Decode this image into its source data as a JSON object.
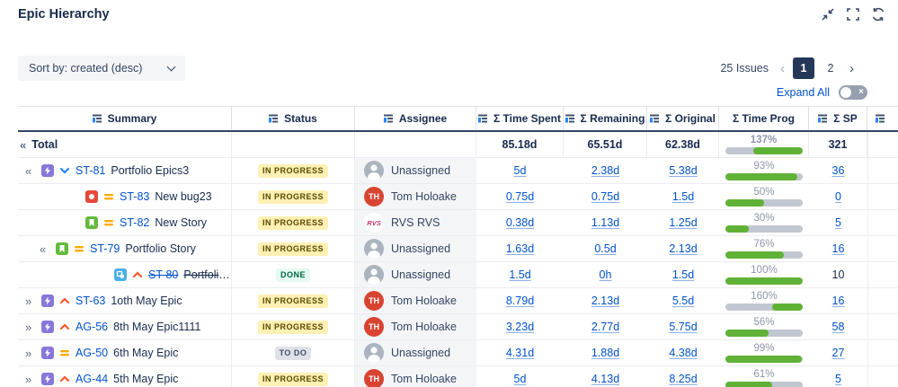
{
  "header": {
    "title": "Epic Hierarchy"
  },
  "window_icons": [
    {
      "name": "collapse-icon"
    },
    {
      "name": "fullscreen-icon"
    },
    {
      "name": "refresh-icon"
    }
  ],
  "toolbar": {
    "sort_label": "Sort by: created (desc)",
    "issues_count": "25 Issues",
    "prev": "‹",
    "next": "›",
    "pages": [
      {
        "label": "1",
        "active": true
      },
      {
        "label": "2",
        "active": false
      }
    ],
    "expand_all_label": "Expand All",
    "toggle_state": "off"
  },
  "colors": {
    "accent": "#0052CC",
    "progress_green": "#5FB236",
    "progress_track": "#C1C7D0",
    "active_page": "#253858"
  },
  "table": {
    "columns": [
      {
        "label": "Summary",
        "icon": true
      },
      {
        "label": "Status",
        "icon": true
      },
      {
        "label": "Assignee",
        "icon": true
      },
      {
        "label": "Σ Time Spent",
        "icon": true
      },
      {
        "label": "Σ Remaining",
        "icon": true
      },
      {
        "label": "Σ Original",
        "icon": true
      },
      {
        "label": "Σ Time Prog",
        "icon": false
      },
      {
        "label": "Σ SP",
        "icon": true
      },
      {
        "label": "",
        "icon": true
      }
    ],
    "total": {
      "chevron": "«",
      "label": "Total",
      "time_spent": "85.18d",
      "remaining": "65.51d",
      "original": "62.38d",
      "progress": 137,
      "sp": "321"
    },
    "rows": [
      {
        "chevron": "«",
        "level": "lvl0",
        "type": "epic",
        "priority": "low",
        "key": "ST-81",
        "summary": "Portfolio Epics3",
        "struck": false,
        "status": {
          "label": "IN PROGRESS",
          "kind": "inprogress"
        },
        "assignee": {
          "name": "Unassigned",
          "avatar": "none"
        },
        "time_spent": "5d",
        "remaining": "2.38d",
        "original": "5.38d",
        "progress": 93,
        "sp": {
          "value": "36",
          "link": true
        }
      },
      {
        "chevron": "",
        "level": "leaf1",
        "type": "bug",
        "priority": "medium",
        "key": "ST-83",
        "summary": "New bug23",
        "struck": false,
        "status": {
          "label": "IN PROGRESS",
          "kind": "inprogress"
        },
        "assignee": {
          "name": "Tom Holoake",
          "avatar": "TH"
        },
        "time_spent": "0.75d",
        "remaining": "0.75d",
        "original": "1.5d",
        "progress": 50,
        "sp": {
          "value": "0",
          "link": true
        }
      },
      {
        "chevron": "",
        "level": "leaf1",
        "type": "story",
        "priority": "medium",
        "key": "ST-82",
        "summary": "New Story",
        "struck": false,
        "status": {
          "label": "IN PROGRESS",
          "kind": "inprogress"
        },
        "assignee": {
          "name": "RVS RVS",
          "avatar": "RVS"
        },
        "time_spent": "0.38d",
        "remaining": "1.13d",
        "original": "1.25d",
        "progress": 30,
        "sp": {
          "value": "5",
          "link": true
        }
      },
      {
        "chevron": "«",
        "level": "lvl1",
        "type": "story",
        "priority": "medium",
        "key": "ST-79",
        "summary": "Portfolio Story",
        "struck": false,
        "status": {
          "label": "IN PROGRESS",
          "kind": "inprogress"
        },
        "assignee": {
          "name": "Unassigned",
          "avatar": "none"
        },
        "time_spent": "1.63d",
        "remaining": "0.5d",
        "original": "2.13d",
        "progress": 76,
        "sp": {
          "value": "16",
          "link": true
        }
      },
      {
        "chevron": "",
        "level": "leaf2",
        "type": "subtask",
        "priority": "high",
        "key": "ST-80",
        "summary": "Portfolio Subtask new",
        "struck": true,
        "status": {
          "label": "DONE",
          "kind": "done"
        },
        "assignee": {
          "name": "Unassigned",
          "avatar": "none"
        },
        "time_spent": "1.5d",
        "remaining": "0h",
        "original": "1.5d",
        "progress": 100,
        "sp": {
          "value": "10",
          "link": false
        }
      },
      {
        "chevron": "»",
        "level": "lvl0",
        "type": "epic",
        "priority": "high",
        "key": "ST-63",
        "summary": "1oth May Epic",
        "struck": false,
        "status": {
          "label": "IN PROGRESS",
          "kind": "inprogress"
        },
        "assignee": {
          "name": "Tom Holoake",
          "avatar": "TH"
        },
        "time_spent": "8.79d",
        "remaining": "2.13d",
        "original": "5.5d",
        "progress": 160,
        "sp": {
          "value": "16",
          "link": true
        }
      },
      {
        "chevron": "»",
        "level": "lvl0",
        "type": "epic",
        "priority": "high",
        "key": "AG-56",
        "summary": "8th May Epic1111",
        "struck": false,
        "status": {
          "label": "IN PROGRESS",
          "kind": "inprogress"
        },
        "assignee": {
          "name": "Tom Holoake",
          "avatar": "TH"
        },
        "time_spent": "3.23d",
        "remaining": "2.77d",
        "original": "5.75d",
        "progress": 56,
        "sp": {
          "value": "58",
          "link": true
        }
      },
      {
        "chevron": "»",
        "level": "lvl0",
        "type": "epic",
        "priority": "medium",
        "key": "AG-50",
        "summary": "6th May Epic",
        "struck": false,
        "status": {
          "label": "TO DO",
          "kind": "todo"
        },
        "assignee": {
          "name": "Unassigned",
          "avatar": "none"
        },
        "time_spent": "4.31d",
        "remaining": "1.88d",
        "original": "4.38d",
        "progress": 99,
        "sp": {
          "value": "27",
          "link": true
        }
      },
      {
        "chevron": "»",
        "level": "lvl0",
        "type": "epic",
        "priority": "high",
        "key": "AG-44",
        "summary": "5th May Epic",
        "struck": false,
        "status": {
          "label": "IN PROGRESS",
          "kind": "inprogress"
        },
        "assignee": {
          "name": "Tom Holoake",
          "avatar": "TH"
        },
        "time_spent": "5d",
        "remaining": "4.13d",
        "original": "8.25d",
        "progress": 61,
        "sp": {
          "value": "5",
          "link": true
        }
      }
    ]
  }
}
